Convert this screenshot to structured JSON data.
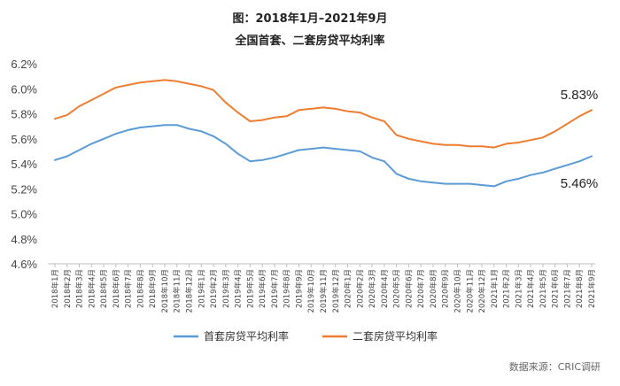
{
  "chart_data": {
    "type": "line",
    "title": "图：2018年1月–2021年9月",
    "subtitle": "全国首套、二套房贷平均利率",
    "source": "数据来源：CRIC调研",
    "x": [
      "2018年1月",
      "2018年2月",
      "2018年3月",
      "2018年4月",
      "2018年5月",
      "2018年6月",
      "2018年7月",
      "2018年8月",
      "2018年9月",
      "2018年10月",
      "2018年11月",
      "2018年12月",
      "2019年1月",
      "2019年2月",
      "2019年3月",
      "2019年4月",
      "2019年5月",
      "2019年6月",
      "2019年7月",
      "2019年8月",
      "2019年9月",
      "2019年10月",
      "2019年11月",
      "2019年12月",
      "2020年1月",
      "2020年2月",
      "2020年3月",
      "2020年4月",
      "2020年5月",
      "2020年6月",
      "2020年7月",
      "2020年8月",
      "2020年9月",
      "2020年10月",
      "2020年11月",
      "2020年12月",
      "2021年1月",
      "2021年2月",
      "2021年3月",
      "2021年4月",
      "2021年5月",
      "2021年6月",
      "2021年7月",
      "2021年8月",
      "2021年9月"
    ],
    "y_ticks": [
      "4.6%",
      "4.8%",
      "5.0%",
      "5.2%",
      "5.4%",
      "5.6%",
      "5.8%",
      "6.0%",
      "6.2%"
    ],
    "ylim": [
      4.6,
      6.2
    ],
    "grid": false,
    "legend_position": "bottom",
    "series": [
      {
        "name": "首套房贷平均利率",
        "color": "#5b9bd5",
        "end_label": "5.46%",
        "values": [
          5.43,
          5.46,
          5.51,
          5.56,
          5.6,
          5.64,
          5.67,
          5.69,
          5.7,
          5.71,
          5.71,
          5.68,
          5.66,
          5.62,
          5.56,
          5.48,
          5.42,
          5.43,
          5.45,
          5.48,
          5.51,
          5.52,
          5.53,
          5.52,
          5.51,
          5.5,
          5.45,
          5.42,
          5.32,
          5.28,
          5.26,
          5.25,
          5.24,
          5.24,
          5.24,
          5.23,
          5.22,
          5.26,
          5.28,
          5.31,
          5.33,
          5.36,
          5.39,
          5.42,
          5.46
        ]
      },
      {
        "name": "二套房贷平均利率",
        "color": "#ed7d31",
        "end_label": "5.83%",
        "values": [
          5.76,
          5.79,
          5.86,
          5.91,
          5.96,
          6.01,
          6.03,
          6.05,
          6.06,
          6.07,
          6.06,
          6.04,
          6.02,
          5.99,
          5.89,
          5.81,
          5.74,
          5.75,
          5.77,
          5.78,
          5.83,
          5.84,
          5.85,
          5.84,
          5.82,
          5.81,
          5.77,
          5.74,
          5.63,
          5.6,
          5.58,
          5.56,
          5.55,
          5.55,
          5.54,
          5.54,
          5.53,
          5.56,
          5.57,
          5.59,
          5.61,
          5.66,
          5.72,
          5.78,
          5.83
        ]
      }
    ]
  }
}
